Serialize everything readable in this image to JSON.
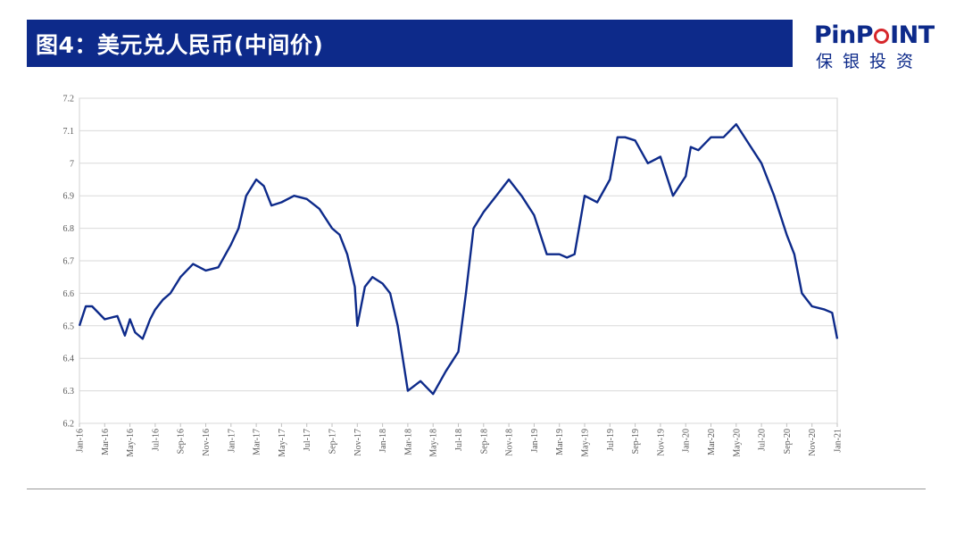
{
  "header": {
    "title": "图4：美元兑人民币(中间价)",
    "title_color": "#ffffff",
    "bar_color": "#0d2a8a"
  },
  "logo": {
    "word_pre": "PinP",
    "word_post": "INT",
    "subtitle": "保银投资",
    "brand_color": "#0d2a8a",
    "accent_color": "#d6262b"
  },
  "chart_data": {
    "type": "line",
    "title": "",
    "xlabel": "",
    "ylabel": "",
    "ylim": [
      6.2,
      7.2
    ],
    "grid": true,
    "legend": "none",
    "line_color": "#0d2a8a",
    "yticks": [
      "7.2",
      "7.1",
      "7",
      "6.9",
      "6.8",
      "6.7",
      "6.6",
      "6.5",
      "6.4",
      "6.3",
      "6.2"
    ],
    "xticks": [
      "Jan-16",
      "Mar-16",
      "May-16",
      "Jul-16",
      "Sep-16",
      "Nov-16",
      "Jan-17",
      "Mar-17",
      "May-17",
      "Jul-17",
      "Sep-17",
      "Nov-17",
      "Jan-18",
      "Mar-18",
      "May-18",
      "Jul-18",
      "Sep-18",
      "Nov-18",
      "Jan-19",
      "Mar-19",
      "May-19",
      "Jul-19",
      "Sep-19",
      "Nov-19",
      "Jan-20",
      "Mar-20",
      "May-20",
      "Jul-20",
      "Sep-20",
      "Nov-20",
      "Jan-21"
    ],
    "series": [
      {
        "x": [
          0,
          0.25,
          0.5,
          1,
          1.5,
          1.8,
          2,
          2.2,
          2.5,
          2.8,
          3,
          3.3,
          3.6,
          4,
          4.5,
          5,
          5.5,
          6,
          6.3,
          6.6,
          7,
          7.3,
          7.6,
          8,
          8.5,
          9,
          9.5,
          10,
          10.3,
          10.6,
          10.9,
          11,
          11.3,
          11.6,
          12,
          12.3,
          12.6,
          13,
          13.5,
          14,
          14.5,
          15,
          15.3,
          15.6,
          16,
          16.5,
          17,
          17.5,
          18,
          18.5,
          19,
          19.3,
          19.6,
          20,
          20.5,
          21,
          21.3,
          21.6,
          22,
          22.5,
          23,
          23.5,
          24,
          24.2,
          24.5,
          25,
          25.5,
          26,
          26.5,
          27,
          27.5,
          28,
          28.3,
          28.6,
          29,
          29.5,
          29.8,
          30
        ],
        "y": [
          6.5,
          6.56,
          6.56,
          6.52,
          6.53,
          6.47,
          6.52,
          6.48,
          6.46,
          6.52,
          6.55,
          6.58,
          6.6,
          6.65,
          6.69,
          6.67,
          6.68,
          6.75,
          6.8,
          6.9,
          6.95,
          6.93,
          6.87,
          6.88,
          6.9,
          6.89,
          6.86,
          6.8,
          6.78,
          6.72,
          6.62,
          6.5,
          6.62,
          6.65,
          6.63,
          6.6,
          6.5,
          6.3,
          6.33,
          6.29,
          6.36,
          6.42,
          6.6,
          6.8,
          6.85,
          6.9,
          6.95,
          6.9,
          6.84,
          6.72,
          6.72,
          6.71,
          6.72,
          6.9,
          6.88,
          6.95,
          7.08,
          7.08,
          7.07,
          7.0,
          7.02,
          6.9,
          6.96,
          7.05,
          7.04,
          7.08,
          7.08,
          7.12,
          7.06,
          7.0,
          6.9,
          6.78,
          6.72,
          6.6,
          6.56,
          6.55,
          6.54,
          6.46
        ]
      }
    ]
  }
}
